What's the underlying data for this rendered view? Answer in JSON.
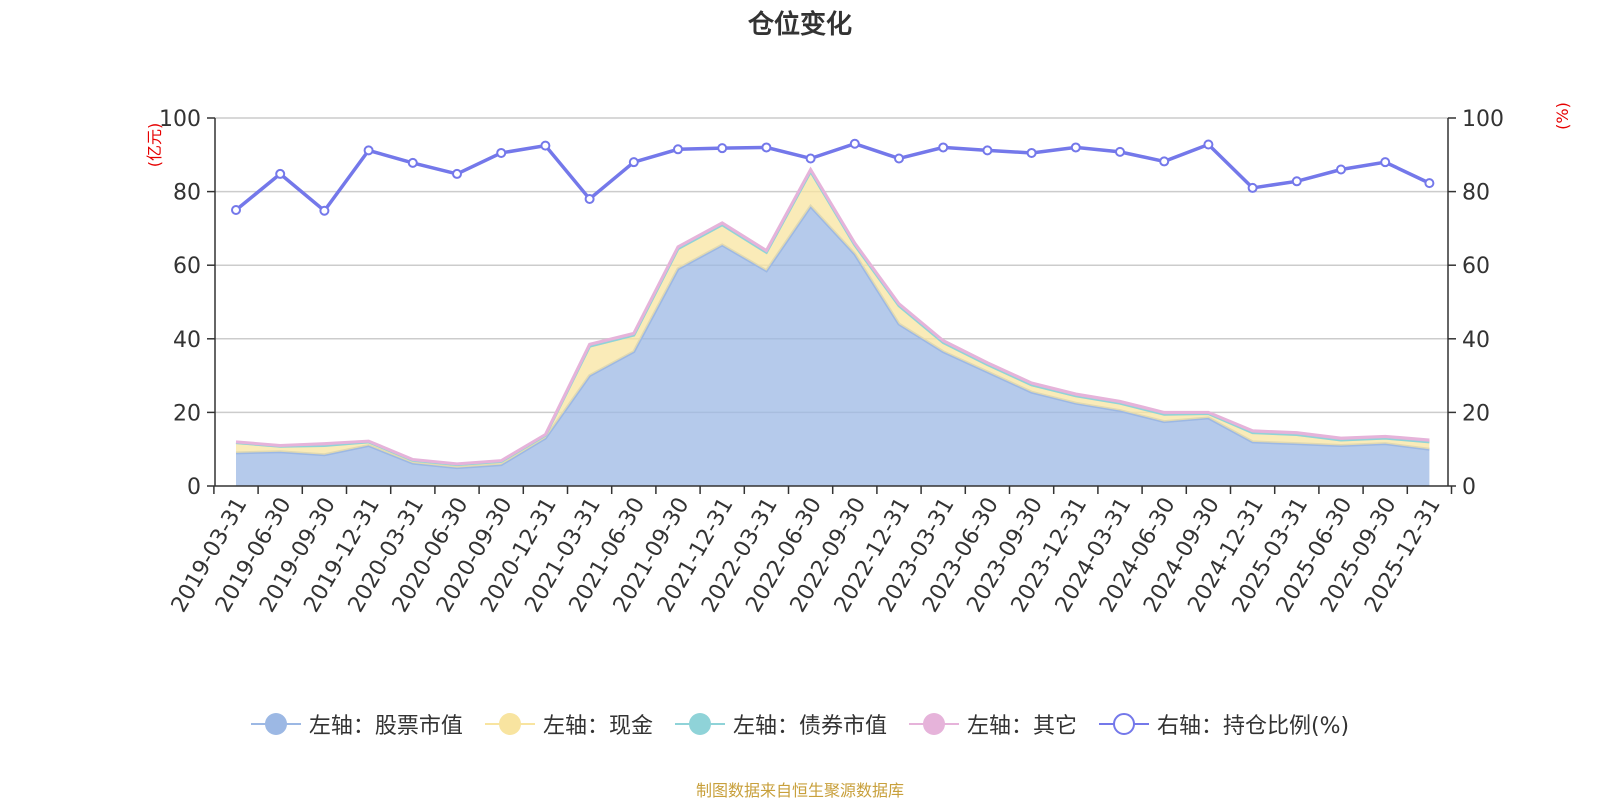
{
  "title": "仓位变化",
  "source_note": "制图数据来自恒生聚源数据库",
  "colors": {
    "stock": "#9cb8e4",
    "cash": "#f8e4a0",
    "bond": "#8fd3d8",
    "other": "#e6b3da",
    "ratio": "#7478ea",
    "axis_unit": "#e60000"
  },
  "legend": [
    {
      "key": "stock",
      "label": "左轴：股票市值",
      "style": "filled"
    },
    {
      "key": "cash",
      "label": "左轴：现金",
      "style": "filled"
    },
    {
      "key": "bond",
      "label": "左轴：债券市值",
      "style": "filled"
    },
    {
      "key": "other",
      "label": "左轴：其它",
      "style": "filled"
    },
    {
      "key": "ratio",
      "label": "右轴：持仓比例(%)",
      "style": "hollow"
    }
  ],
  "chart_data": {
    "type": "area",
    "title": "仓位变化",
    "left_axis": {
      "unit_label": "(亿元)",
      "ylim": [
        0,
        100
      ],
      "ticks": [
        0,
        20,
        40,
        60,
        80,
        100
      ]
    },
    "right_axis": {
      "unit_label": "(%)",
      "ylim": [
        0,
        100
      ],
      "ticks": [
        0,
        20,
        40,
        60,
        80,
        100
      ]
    },
    "categories": [
      "2019-03-31",
      "2019-06-30",
      "2019-09-30",
      "2019-12-31",
      "2020-03-31",
      "2020-06-30",
      "2020-09-30",
      "2020-12-31",
      "2021-03-31",
      "2021-06-30",
      "2021-09-30",
      "2021-12-31",
      "2022-03-31",
      "2022-06-30",
      "2022-09-30",
      "2022-12-31",
      "2023-03-31",
      "2023-06-30",
      "2023-09-30",
      "2023-12-31",
      "2024-03-31",
      "2024-06-30",
      "2024-09-30",
      "2024-12-31",
      "2025-03-31",
      "2025-06-30",
      "2025-09-30",
      "2025-12-31"
    ],
    "series": [
      {
        "name": "左轴：股票市值",
        "key": "stock",
        "axis": "left",
        "stacked": true,
        "values": [
          9.0,
          9.3,
          8.5,
          11.0,
          6.2,
          5.0,
          5.8,
          13.0,
          30.0,
          36.5,
          59.0,
          65.5,
          58.5,
          76.0,
          63.0,
          44.0,
          36.5,
          31.0,
          25.5,
          22.5,
          20.5,
          17.5,
          18.5,
          12.0,
          11.5,
          11.0,
          11.5,
          10.0
        ]
      },
      {
        "name": "左轴：现金",
        "key": "cash",
        "axis": "left",
        "stacked": true,
        "values": [
          2.8,
          1.5,
          2.5,
          1.0,
          0.8,
          0.8,
          0.9,
          0.8,
          8.0,
          4.5,
          5.5,
          5.5,
          5.0,
          9.5,
          2.5,
          5.0,
          2.5,
          2.0,
          2.0,
          2.0,
          2.0,
          2.0,
          1.2,
          2.5,
          2.5,
          1.5,
          1.5,
          2.0
        ]
      },
      {
        "name": "左轴：债券市值",
        "key": "bond",
        "axis": "left",
        "stacked": true,
        "values": [
          0,
          0,
          0,
          0,
          0,
          0,
          0,
          0,
          0,
          0,
          0,
          0,
          0,
          0,
          0,
          0,
          0,
          0,
          0,
          0,
          0,
          0,
          0,
          0,
          0,
          0,
          0,
          0
        ]
      },
      {
        "name": "左轴：其它",
        "key": "other",
        "axis": "left",
        "stacked": true,
        "values": [
          0.2,
          0.2,
          0.5,
          0.2,
          0.2,
          0.2,
          0.2,
          0.2,
          0.5,
          0.5,
          0.5,
          0.5,
          0.5,
          0.5,
          0.5,
          0.5,
          0.5,
          0.5,
          0.5,
          0.5,
          0.5,
          0.5,
          0.3,
          0.5,
          0.5,
          0.5,
          0.5,
          0.5
        ]
      },
      {
        "name": "右轴：持仓比例(%)",
        "key": "ratio",
        "axis": "right",
        "type": "line",
        "values": [
          75.0,
          84.8,
          74.8,
          91.2,
          87.8,
          84.8,
          90.5,
          92.5,
          78.0,
          88.0,
          91.5,
          91.8,
          92.0,
          89.0,
          93.0,
          89.0,
          92.0,
          91.2,
          90.5,
          92.0,
          90.8,
          88.2,
          92.8,
          81.0,
          82.8,
          86.0,
          88.0,
          82.3
        ]
      }
    ]
  }
}
